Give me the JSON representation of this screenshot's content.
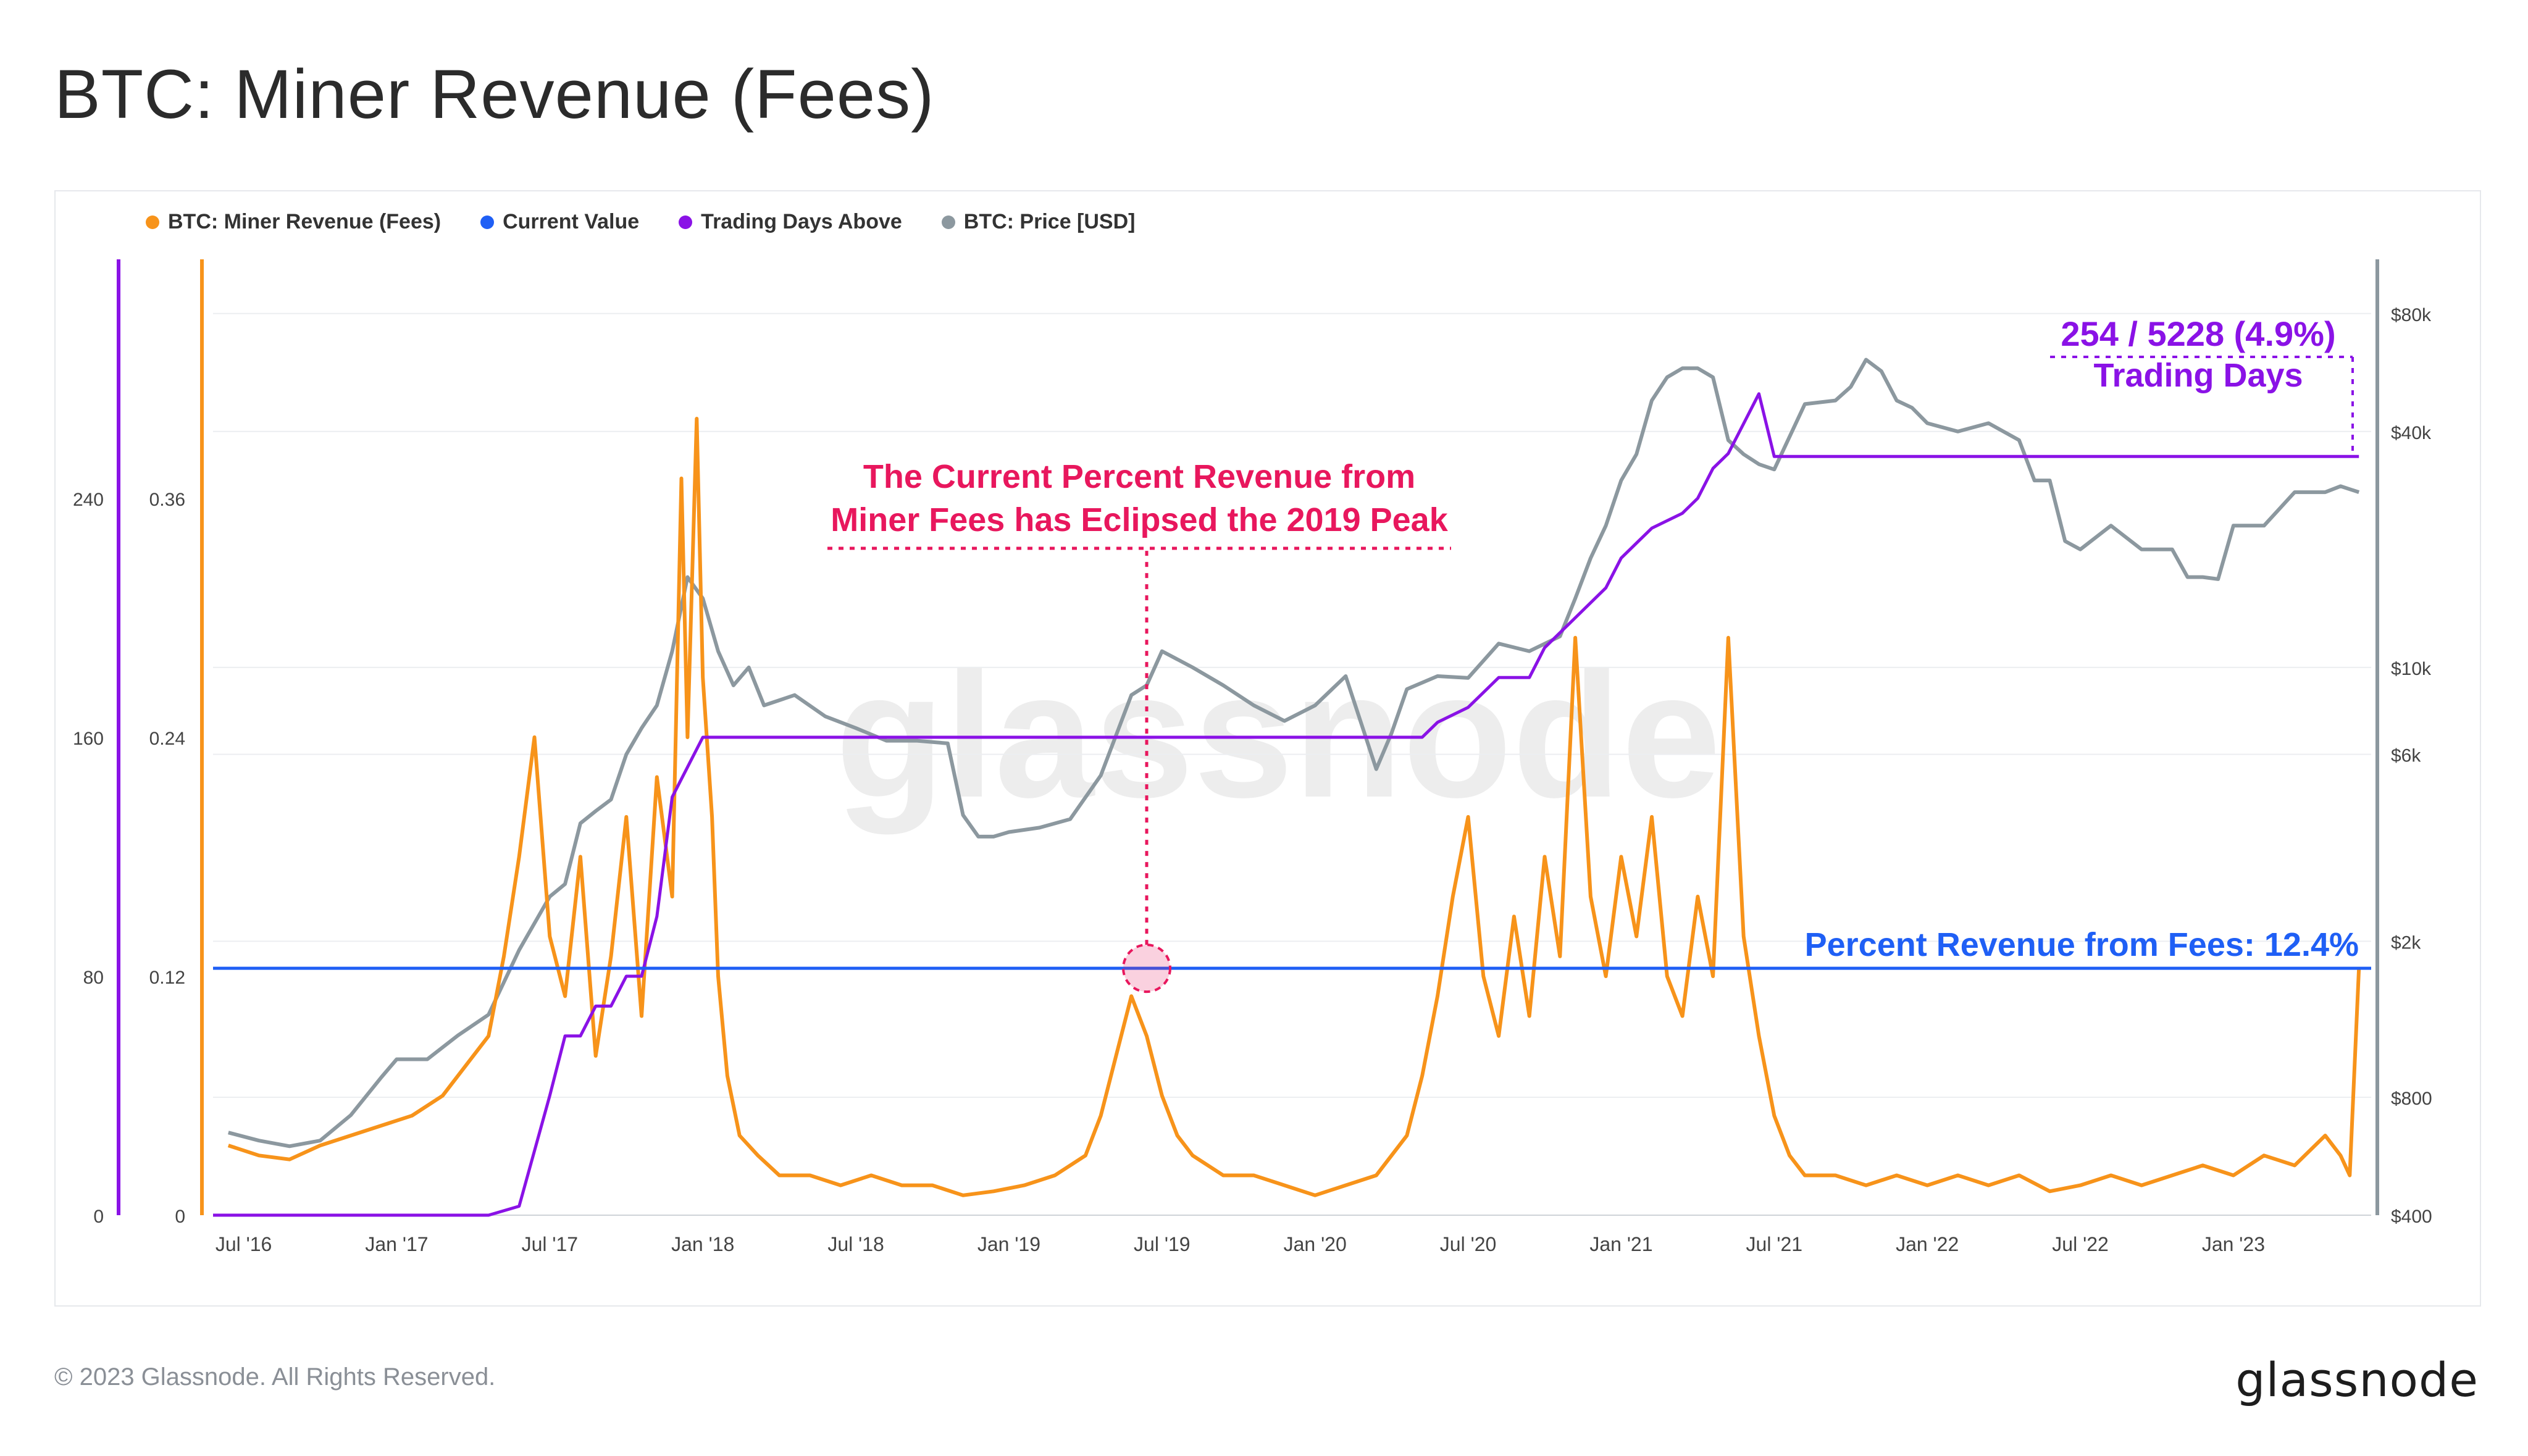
{
  "page": {
    "title": "BTC: Miner Revenue (Fees)",
    "footer_copyright": "© 2023 Glassnode. All Rights Reserved.",
    "footer_logo": "glassnode"
  },
  "colors": {
    "fees": "#f7931a",
    "current_value": "#1f5ff5",
    "trading_days": "#8a12e6",
    "price": "#8c989f",
    "annotation_pink": "#e8175d"
  },
  "chart_data": {
    "type": "line",
    "watermark": "glassnode",
    "legend": [
      {
        "name": "BTC: Miner Revenue (Fees)",
        "color": "#f7931a"
      },
      {
        "name": "Current Value",
        "color": "#1f5ff5"
      },
      {
        "name": "Trading Days Above",
        "color": "#8a12e6"
      },
      {
        "name": "BTC: Price [USD]",
        "color": "#8c989f"
      }
    ],
    "x_ticks": [
      "Jul '16",
      "Jan '17",
      "Jul '17",
      "Jan '18",
      "Jul '18",
      "Jan '19",
      "Jul '19",
      "Jan '20",
      "Jul '20",
      "Jan '21",
      "Jul '21",
      "Jan '22",
      "Jul '22",
      "Jan '23"
    ],
    "x_tick_dates": [
      2016.5,
      2017.0,
      2017.5,
      2018.0,
      2018.5,
      2019.0,
      2019.5,
      2020.0,
      2020.5,
      2021.0,
      2021.5,
      2022.0,
      2022.5,
      2023.0
    ],
    "x_range": [
      2016.4,
      2023.45
    ],
    "y_left_fees": {
      "ticks": [
        "0",
        "0.12",
        "0.24",
        "0.36"
      ],
      "values": [
        0,
        0.12,
        0.24,
        0.36
      ],
      "range": [
        0,
        0.48
      ]
    },
    "y_left_days": {
      "ticks": [
        "0",
        "80",
        "160",
        "240"
      ],
      "values": [
        0,
        80,
        160,
        240
      ],
      "range": [
        0,
        320
      ]
    },
    "y_right_price": {
      "scale": "log",
      "ticks": [
        "$400",
        "$800",
        "$2k",
        "$6k",
        "$10k",
        "$40k",
        "$80k"
      ],
      "values": [
        400,
        800,
        2000,
        6000,
        10000,
        40000,
        80000
      ]
    },
    "current_value": 0.124,
    "fees_series": {
      "name": "BTC: Miner Revenue (Fees)",
      "x": [
        2016.45,
        2016.55,
        2016.65,
        2016.75,
        2016.85,
        2016.95,
        2017.05,
        2017.15,
        2017.25,
        2017.3,
        2017.35,
        2017.4,
        2017.45,
        2017.5,
        2017.55,
        2017.6,
        2017.65,
        2017.7,
        2017.75,
        2017.8,
        2017.85,
        2017.9,
        2017.93,
        2017.95,
        2017.98,
        2018.0,
        2018.03,
        2018.05,
        2018.08,
        2018.12,
        2018.18,
        2018.25,
        2018.35,
        2018.45,
        2018.55,
        2018.65,
        2018.75,
        2018.85,
        2018.95,
        2019.05,
        2019.15,
        2019.25,
        2019.3,
        2019.35,
        2019.4,
        2019.45,
        2019.5,
        2019.55,
        2019.6,
        2019.7,
        2019.8,
        2019.9,
        2020.0,
        2020.1,
        2020.2,
        2020.3,
        2020.35,
        2020.4,
        2020.45,
        2020.5,
        2020.55,
        2020.6,
        2020.65,
        2020.7,
        2020.75,
        2020.8,
        2020.85,
        2020.9,
        2020.95,
        2021.0,
        2021.05,
        2021.1,
        2021.15,
        2021.2,
        2021.25,
        2021.3,
        2021.35,
        2021.4,
        2021.45,
        2021.5,
        2021.55,
        2021.6,
        2021.7,
        2021.8,
        2021.9,
        2022.0,
        2022.1,
        2022.2,
        2022.3,
        2022.4,
        2022.5,
        2022.6,
        2022.7,
        2022.8,
        2022.9,
        2023.0,
        2023.1,
        2023.2,
        2023.3,
        2023.35,
        2023.38,
        2023.41
      ],
      "values": [
        0.035,
        0.03,
        0.028,
        0.035,
        0.04,
        0.045,
        0.05,
        0.06,
        0.08,
        0.09,
        0.13,
        0.18,
        0.24,
        0.14,
        0.11,
        0.18,
        0.08,
        0.13,
        0.2,
        0.1,
        0.22,
        0.16,
        0.37,
        0.24,
        0.4,
        0.27,
        0.2,
        0.12,
        0.07,
        0.04,
        0.03,
        0.02,
        0.02,
        0.015,
        0.02,
        0.015,
        0.015,
        0.01,
        0.012,
        0.015,
        0.02,
        0.03,
        0.05,
        0.08,
        0.11,
        0.09,
        0.06,
        0.04,
        0.03,
        0.02,
        0.02,
        0.015,
        0.01,
        0.015,
        0.02,
        0.04,
        0.07,
        0.11,
        0.16,
        0.2,
        0.12,
        0.09,
        0.15,
        0.1,
        0.18,
        0.13,
        0.29,
        0.16,
        0.12,
        0.18,
        0.14,
        0.2,
        0.12,
        0.1,
        0.16,
        0.12,
        0.29,
        0.14,
        0.09,
        0.05,
        0.03,
        0.02,
        0.02,
        0.015,
        0.02,
        0.015,
        0.02,
        0.015,
        0.02,
        0.012,
        0.015,
        0.02,
        0.015,
        0.02,
        0.025,
        0.02,
        0.03,
        0.025,
        0.04,
        0.03,
        0.02,
        0.124
      ]
    },
    "trading_days_series": {
      "name": "Trading Days Above",
      "x": [
        2016.4,
        2017.2,
        2017.3,
        2017.4,
        2017.5,
        2017.55,
        2017.6,
        2017.65,
        2017.7,
        2017.75,
        2017.8,
        2017.85,
        2017.9,
        2017.95,
        2018.0,
        2018.05,
        2018.1,
        2019.0,
        2019.5,
        2020.0,
        2020.35,
        2020.4,
        2020.5,
        2020.6,
        2020.7,
        2020.75,
        2020.8,
        2020.85,
        2020.95,
        2021.0,
        2021.05,
        2021.1,
        2021.2,
        2021.25,
        2021.3,
        2021.35,
        2021.4,
        2021.45,
        2021.5,
        2022.0,
        2022.5,
        2023.0,
        2023.41
      ],
      "values": [
        0,
        0,
        0,
        3,
        40,
        60,
        60,
        70,
        70,
        80,
        80,
        100,
        140,
        150,
        160,
        160,
        160,
        160,
        160,
        160,
        160,
        165,
        170,
        180,
        180,
        190,
        195,
        200,
        210,
        220,
        225,
        230,
        235,
        240,
        250,
        255,
        265,
        275,
        254,
        254,
        254,
        254,
        254
      ]
    },
    "price_series": {
      "name": "BTC: Price [USD]",
      "x": [
        2016.45,
        2016.55,
        2016.65,
        2016.75,
        2016.85,
        2016.95,
        2017.0,
        2017.1,
        2017.2,
        2017.3,
        2017.4,
        2017.5,
        2017.55,
        2017.6,
        2017.65,
        2017.7,
        2017.75,
        2017.8,
        2017.85,
        2017.9,
        2017.95,
        2018.0,
        2018.05,
        2018.1,
        2018.15,
        2018.2,
        2018.3,
        2018.4,
        2018.5,
        2018.6,
        2018.7,
        2018.8,
        2018.85,
        2018.9,
        2018.95,
        2019.0,
        2019.1,
        2019.2,
        2019.3,
        2019.4,
        2019.45,
        2019.5,
        2019.6,
        2019.7,
        2019.8,
        2019.9,
        2020.0,
        2020.1,
        2020.2,
        2020.25,
        2020.3,
        2020.4,
        2020.5,
        2020.6,
        2020.7,
        2020.8,
        2020.85,
        2020.9,
        2020.95,
        2021.0,
        2021.05,
        2021.1,
        2021.15,
        2021.2,
        2021.25,
        2021.3,
        2021.35,
        2021.4,
        2021.45,
        2021.5,
        2021.6,
        2021.7,
        2021.75,
        2021.8,
        2021.85,
        2021.9,
        2021.95,
        2022.0,
        2022.1,
        2022.2,
        2022.3,
        2022.35,
        2022.4,
        2022.45,
        2022.5,
        2022.6,
        2022.7,
        2022.8,
        2022.85,
        2022.9,
        2022.95,
        2023.0,
        2023.1,
        2023.2,
        2023.3,
        2023.35,
        2023.41
      ],
      "values": [
        650,
        620,
        600,
        620,
        720,
        900,
        1000,
        1000,
        1150,
        1300,
        1900,
        2600,
        2800,
        4000,
        4300,
        4600,
        6000,
        7000,
        8000,
        11000,
        17000,
        15000,
        11000,
        9000,
        10000,
        8000,
        8500,
        7500,
        7000,
        6500,
        6500,
        6400,
        4200,
        3700,
        3700,
        3800,
        3900,
        4100,
        5300,
        8500,
        9000,
        11000,
        10000,
        9000,
        8000,
        7300,
        8000,
        9500,
        5500,
        6800,
        8800,
        9500,
        9400,
        11500,
        11000,
        12000,
        15000,
        19000,
        23000,
        30000,
        35000,
        48000,
        55000,
        58000,
        58000,
        55000,
        38000,
        35000,
        33000,
        32000,
        47000,
        48000,
        52000,
        61000,
        57000,
        48000,
        46000,
        42000,
        40000,
        42000,
        38000,
        30000,
        30000,
        21000,
        20000,
        23000,
        20000,
        20000,
        17000,
        17000,
        16800,
        23000,
        23000,
        28000,
        28000,
        29000,
        28000
      ]
    },
    "annotations": {
      "peak_note_line1": "The Current Percent Revenue from",
      "peak_note_line2": "Miner Fees has Eclipsed the 2019 Peak",
      "peak_point_x": 2019.45,
      "peak_point_y": 0.124,
      "current_label": "Percent Revenue from Fees: 12.4%",
      "trading_days_line1": "254 / 5228 (4.9%)",
      "trading_days_line2": "Trading Days"
    }
  }
}
